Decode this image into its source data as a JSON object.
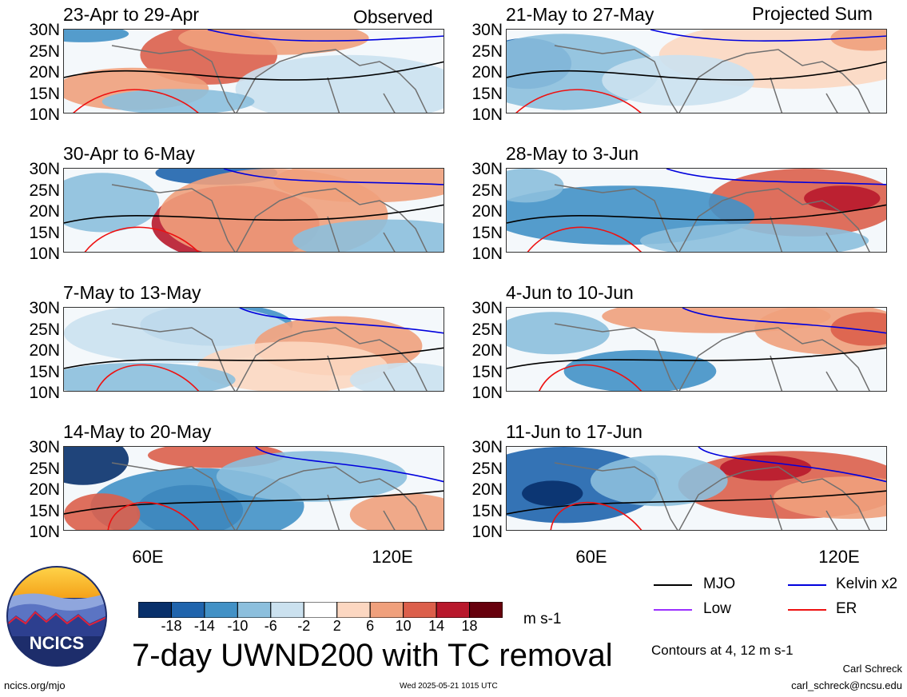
{
  "headers": {
    "observed": "Observed",
    "projected": "Projected Sum"
  },
  "lat_labels": [
    "30N",
    "25N",
    "20N",
    "15N",
    "10N"
  ],
  "lon_labels": [
    "60E",
    "120E"
  ],
  "panels_left": [
    {
      "title": "23-Apr to 29-Apr"
    },
    {
      "title": "30-Apr to 6-May"
    },
    {
      "title": "7-May to 13-May"
    },
    {
      "title": "14-May to 20-May"
    }
  ],
  "panels_right": [
    {
      "title": "21-May to 27-May"
    },
    {
      "title": "28-May to 3-Jun"
    },
    {
      "title": "4-Jun to 10-Jun"
    },
    {
      "title": "11-Jun to 17-Jun"
    }
  ],
  "colorbar": {
    "labels": [
      "-18",
      "-14",
      "-10",
      "-6",
      "-2",
      "2",
      "6",
      "10",
      "14",
      "18"
    ],
    "colors": [
      "#08306b",
      "#1f64ad",
      "#4291c6",
      "#8cbfdd",
      "#cbe1ef",
      "#ffffff",
      "#fcd7c1",
      "#f0a07c",
      "#dc5f4b",
      "#b8182c",
      "#67000d"
    ],
    "units": "m s-1"
  },
  "legend": {
    "mjo": {
      "label": "MJO",
      "color": "#000000"
    },
    "kelvin": {
      "label": "Kelvin x2",
      "color": "#0000dd"
    },
    "low": {
      "label": "Low",
      "color": "#9b30ff"
    },
    "er": {
      "label": "ER",
      "color": "#ee1111"
    },
    "contours": "Contours at 4, 12 m s-1"
  },
  "footer": {
    "title": "7-day UWND200 with TC removal",
    "url": "ncics.org/mjo",
    "timestamp": "Wed 2025-05-21 1015 UTC",
    "author": "Carl Schreck",
    "email": "carl_schreck@ncsu.edu",
    "logo_text": "NCICS"
  }
}
